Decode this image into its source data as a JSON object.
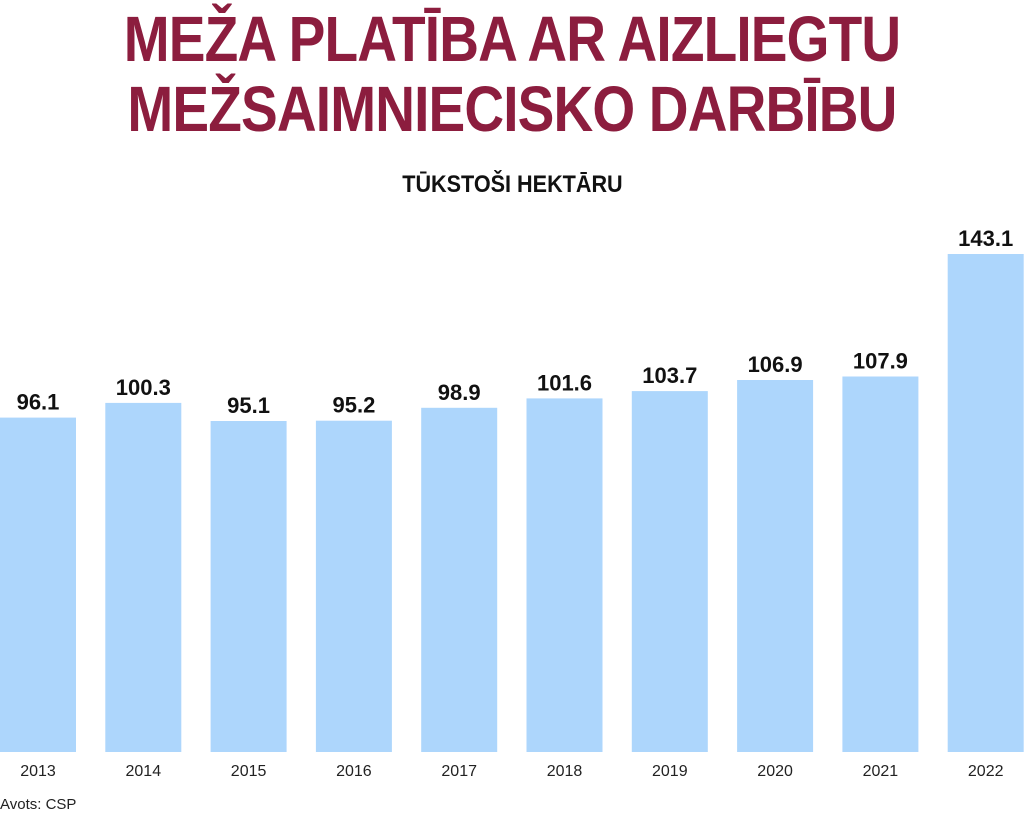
{
  "title": {
    "line1": "MEŽA PLATĪBA AR AIZLIEGTU",
    "line2": "MEŽSAIMNIECISKO DARBĪBU"
  },
  "subtitle": "TŪKSTOŠI HEKTĀRU",
  "source": "Avots: CSP",
  "colors": {
    "bar": "#add6fc",
    "title": "#8c1d3e",
    "text": "#111111"
  },
  "chart_data": {
    "type": "bar",
    "title": "MEŽA PLATĪBA AR AIZLIEGTU MEŽSAIMNIECISKO DARBĪBU",
    "subtitle": "TŪKSTOŠI HEKTĀRU",
    "categories": [
      "2013",
      "2014",
      "2015",
      "2016",
      "2017",
      "2018",
      "2019",
      "2020",
      "2021",
      "2022"
    ],
    "values": [
      96.1,
      100.3,
      95.1,
      95.2,
      98.9,
      101.6,
      103.7,
      106.9,
      107.9,
      143.1
    ],
    "labels": [
      "96.1",
      "100.3",
      "95.1",
      "95.2",
      "98.9",
      "101.6",
      "103.7",
      "106.9",
      "107.9",
      "143.1"
    ],
    "xlabel": "",
    "ylabel": "",
    "ylim": [
      0,
      143.1
    ],
    "grid": false,
    "legend": "none"
  }
}
